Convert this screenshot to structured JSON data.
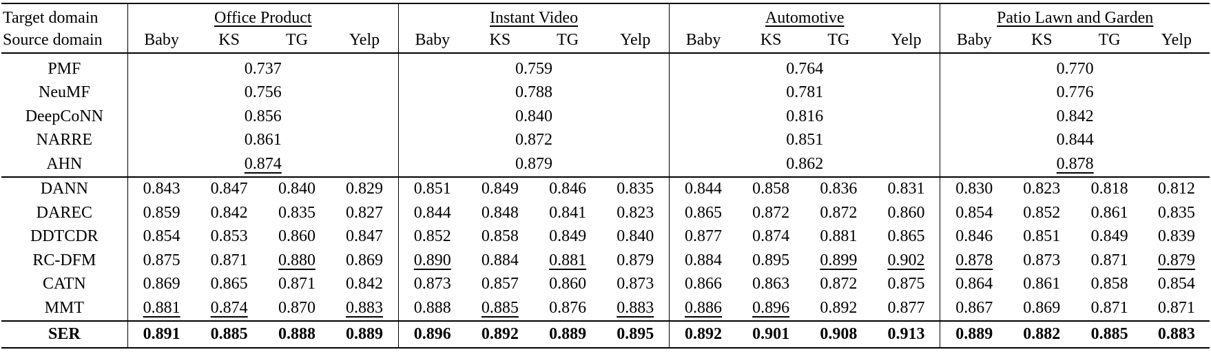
{
  "table": {
    "header": {
      "target_label": "Target domain",
      "source_label": "Source domain",
      "groups": [
        "Office Product",
        "Instant Video",
        "Automotive",
        "Patio Lawn and Garden"
      ],
      "sources": [
        "Baby",
        "KS",
        "TG",
        "Yelp"
      ]
    },
    "single_domain": [
      {
        "method": "PMF",
        "values": [
          "0.737",
          "0.759",
          "0.764",
          "0.770"
        ],
        "underlined": [
          false,
          false,
          false,
          false
        ]
      },
      {
        "method": "NeuMF",
        "values": [
          "0.756",
          "0.788",
          "0.781",
          "0.776"
        ],
        "underlined": [
          false,
          false,
          false,
          false
        ]
      },
      {
        "method": "DeepCoNN",
        "values": [
          "0.856",
          "0.840",
          "0.816",
          "0.842"
        ],
        "underlined": [
          false,
          false,
          false,
          false
        ]
      },
      {
        "method": "NARRE",
        "values": [
          "0.861",
          "0.872",
          "0.851",
          "0.844"
        ],
        "underlined": [
          false,
          false,
          false,
          false
        ]
      },
      {
        "method": "AHN",
        "values": [
          "0.874",
          "0.879",
          "0.862",
          "0.878"
        ],
        "underlined": [
          true,
          false,
          false,
          true
        ]
      }
    ],
    "cross_domain": [
      {
        "method": "DANN",
        "values": [
          "0.843",
          "0.847",
          "0.840",
          "0.829",
          "0.851",
          "0.849",
          "0.846",
          "0.835",
          "0.844",
          "0.858",
          "0.836",
          "0.831",
          "0.830",
          "0.823",
          "0.818",
          "0.812"
        ],
        "underlined": []
      },
      {
        "method": "DAREC",
        "values": [
          "0.859",
          "0.842",
          "0.835",
          "0.827",
          "0.844",
          "0.848",
          "0.841",
          "0.823",
          "0.865",
          "0.872",
          "0.872",
          "0.860",
          "0.854",
          "0.852",
          "0.861",
          "0.835"
        ],
        "underlined": []
      },
      {
        "method": "DDTCDR",
        "values": [
          "0.854",
          "0.853",
          "0.860",
          "0.847",
          "0.852",
          "0.858",
          "0.849",
          "0.840",
          "0.877",
          "0.874",
          "0.881",
          "0.865",
          "0.846",
          "0.851",
          "0.849",
          "0.839"
        ],
        "underlined": []
      },
      {
        "method": "RC-DFM",
        "values": [
          "0.875",
          "0.871",
          "0.880",
          "0.869",
          "0.890",
          "0.884",
          "0.881",
          "0.879",
          "0.884",
          "0.895",
          "0.899",
          "0.902",
          "0.878",
          "0.873",
          "0.871",
          "0.879"
        ],
        "underlined": [
          2,
          4,
          6,
          10,
          11,
          12,
          15
        ]
      },
      {
        "method": "CATN",
        "values": [
          "0.869",
          "0.865",
          "0.871",
          "0.842",
          "0.873",
          "0.857",
          "0.860",
          "0.873",
          "0.866",
          "0.863",
          "0.872",
          "0.875",
          "0.864",
          "0.861",
          "0.858",
          "0.854"
        ],
        "underlined": []
      },
      {
        "method": "MMT",
        "values": [
          "0.881",
          "0.874",
          "0.870",
          "0.883",
          "0.888",
          "0.885",
          "0.876",
          "0.883",
          "0.886",
          "0.896",
          "0.892",
          "0.877",
          "0.867",
          "0.869",
          "0.871",
          "0.871"
        ],
        "underlined": [
          0,
          1,
          3,
          5,
          7,
          8,
          9
        ]
      }
    ],
    "ours": {
      "method": "SER",
      "values": [
        "0.891",
        "0.885",
        "0.888",
        "0.889",
        "0.896",
        "0.892",
        "0.889",
        "0.895",
        "0.892",
        "0.901",
        "0.908",
        "0.913",
        "0.889",
        "0.882",
        "0.885",
        "0.883"
      ]
    }
  }
}
